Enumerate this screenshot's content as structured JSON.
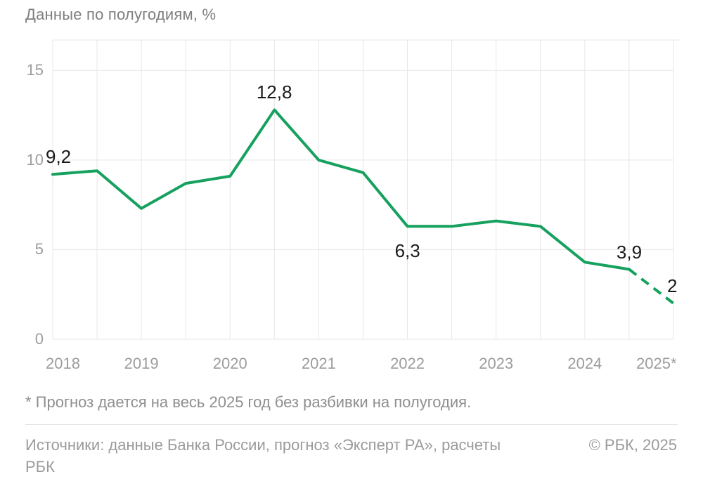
{
  "title": "Данные по полугодиям, %",
  "chart_data": {
    "type": "line",
    "title": "Данные по полугодиям, %",
    "unit": "%",
    "x_period": "half-year",
    "categories": [
      "2018 H1",
      "2018 H2",
      "2019 H1",
      "2019 H2",
      "2020 H1",
      "2020 H2",
      "2021 H1",
      "2021 H2",
      "2022 H1",
      "2022 H2",
      "2023 H1",
      "2023 H2",
      "2024 H1",
      "2024 H2",
      "2025 (прогноз)"
    ],
    "values": [
      9.2,
      9.4,
      7.3,
      8.7,
      9.1,
      12.8,
      10.0,
      9.3,
      6.3,
      6.3,
      6.6,
      6.3,
      4.3,
      3.9,
      2
    ],
    "forecast_from_index": 13,
    "forecast_style": "dashed",
    "y_ticks": [
      0,
      5,
      10,
      15
    ],
    "ylim": [
      0,
      16.7
    ],
    "grid": true,
    "legend": "none",
    "x_tick_labels": [
      {
        "label": "2018",
        "slot": 0
      },
      {
        "label": "2019",
        "slot": 2
      },
      {
        "label": "2020",
        "slot": 4
      },
      {
        "label": "2021",
        "slot": 6
      },
      {
        "label": "2022",
        "slot": 8
      },
      {
        "label": "2023",
        "slot": 10
      },
      {
        "label": "2024",
        "slot": 12
      },
      {
        "label": "2025*",
        "slot": 14
      }
    ],
    "annotations": [
      {
        "index": 0,
        "text": "9,2",
        "placement": "above"
      },
      {
        "index": 5,
        "text": "12,8",
        "placement": "above"
      },
      {
        "index": 8,
        "text": "6,3",
        "placement": "below"
      },
      {
        "index": 13,
        "text": "3,9",
        "placement": "above"
      },
      {
        "index": 14,
        "text": "2",
        "placement": "above"
      }
    ]
  },
  "footer": {
    "footnote": "* Прогноз дается на весь 2025 год без разбивки на полугодия.",
    "sources": "Источники: данные Банка России, прогноз «Эксперт РА», расчеты РБК",
    "copyright": "© РБК, 2025"
  },
  "colors": {
    "line": "#16A15F",
    "grid": "#E7E7E7",
    "axis_text": "#9D9D9D",
    "title_text": "#7E7E7E",
    "data_label_text": "#1A1A1A",
    "muted_text": "#9B9B9B"
  }
}
